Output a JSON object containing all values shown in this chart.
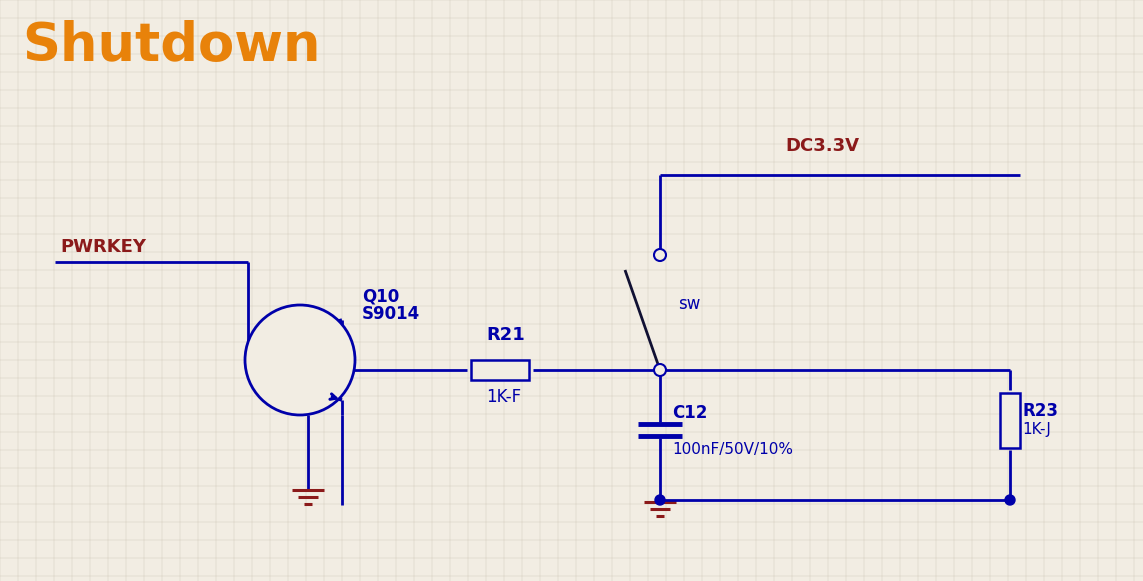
{
  "title": "Shutdown",
  "title_color": "#E8820A",
  "title_fontsize": 38,
  "bg_color": "#F2EDE3",
  "grid_color": "#C8C0B0",
  "line_color": "#0000AA",
  "dark_red": "#8B1A1A",
  "component_color": "#0000AA",
  "pwrkey_label": "PWRKEY",
  "dc_label": "DC3.3V",
  "q10_label": "Q10",
  "q10_val": "S9014",
  "r21_label": "R21",
  "r21_val": "1K-F",
  "c12_label": "C12",
  "c12_val": "100nF/50V/10%",
  "r23_label": "R23",
  "r23_val": "1K-J",
  "sw_label": "sw",
  "figsize": [
    11.43,
    5.81
  ],
  "dpi": 100
}
